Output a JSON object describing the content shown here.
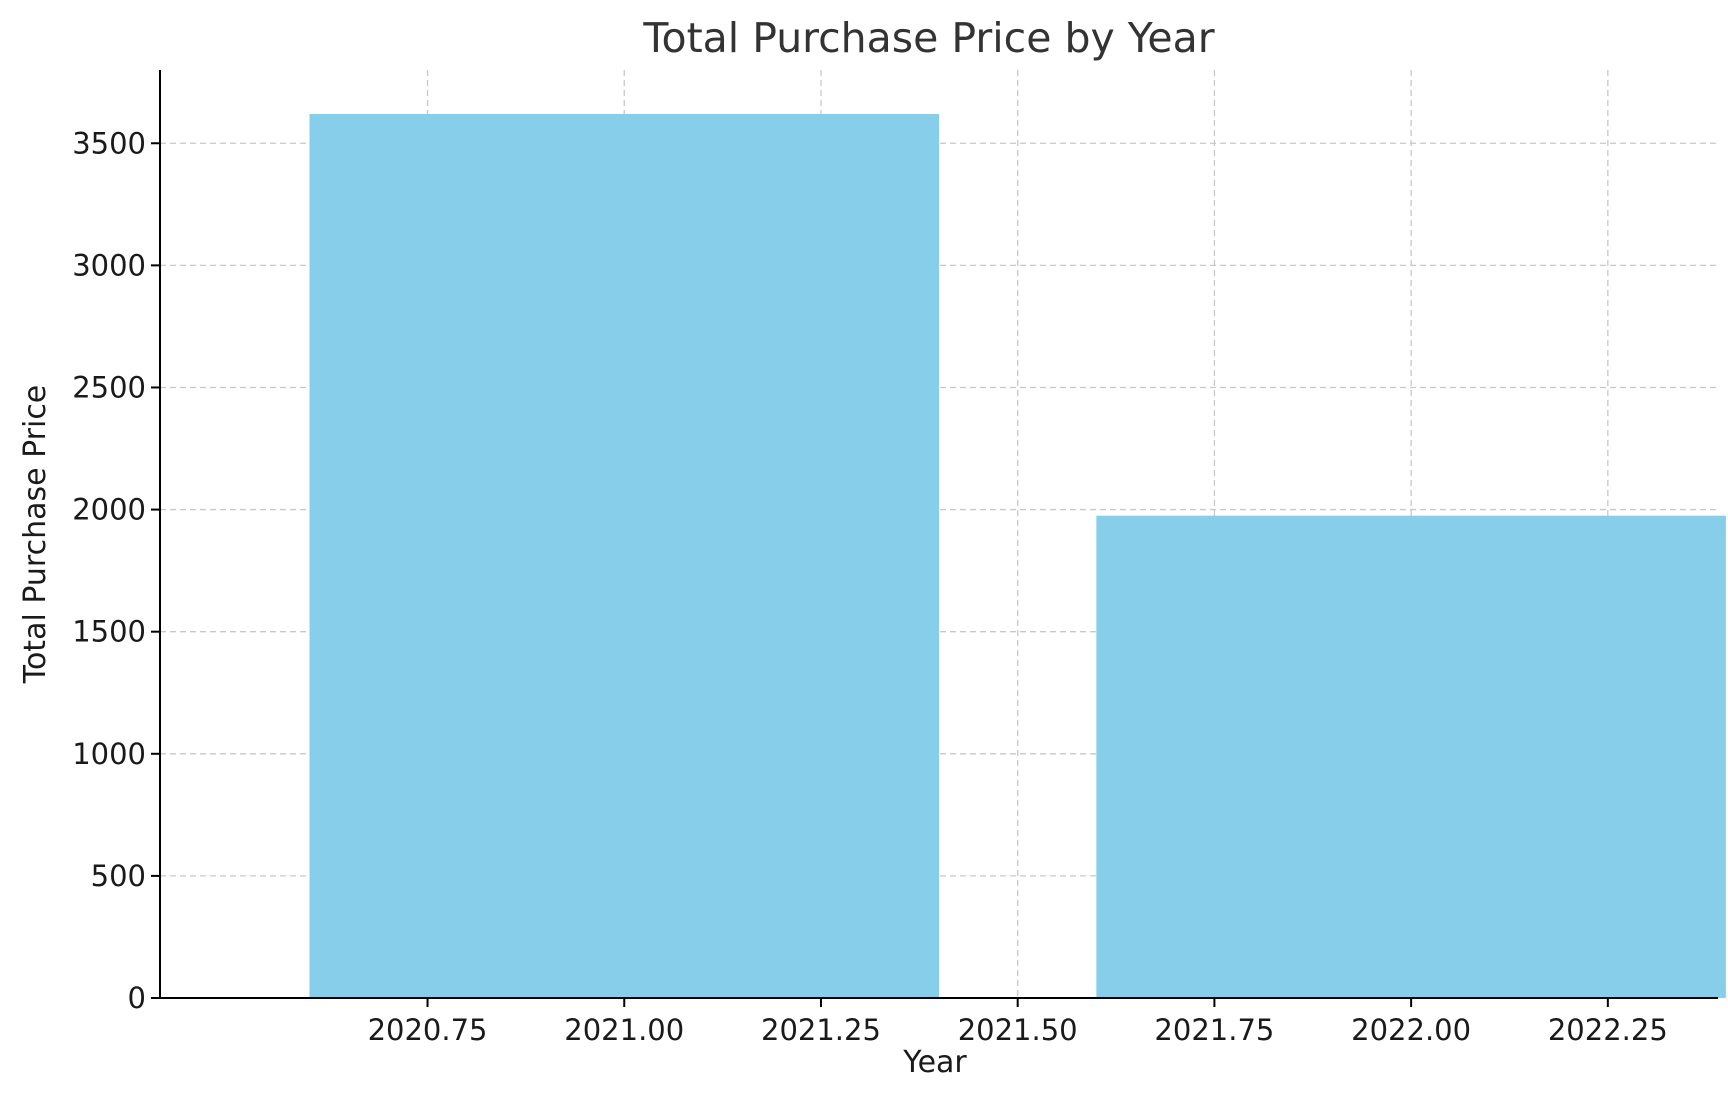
{
  "chart_data": {
    "type": "bar",
    "title": "Total Purchase Price by Year",
    "xlabel": "Year",
    "ylabel": "Total Purchase Price",
    "x_ticks": [
      "2020.75",
      "2021.00",
      "2021.25",
      "2021.50",
      "2021.75",
      "2022.00",
      "2022.25"
    ],
    "y_ticks": [
      "0",
      "500",
      "1000",
      "1500",
      "2000",
      "2500",
      "3000",
      "3500"
    ],
    "xlim": [
      2020.41,
      2022.39
    ],
    "ylim": [
      0,
      3800
    ],
    "grid": true,
    "bar_color": "#87CEEB",
    "bar_width": 0.8,
    "categories": [
      2021,
      2022
    ],
    "values": [
      3620,
      1975
    ]
  }
}
